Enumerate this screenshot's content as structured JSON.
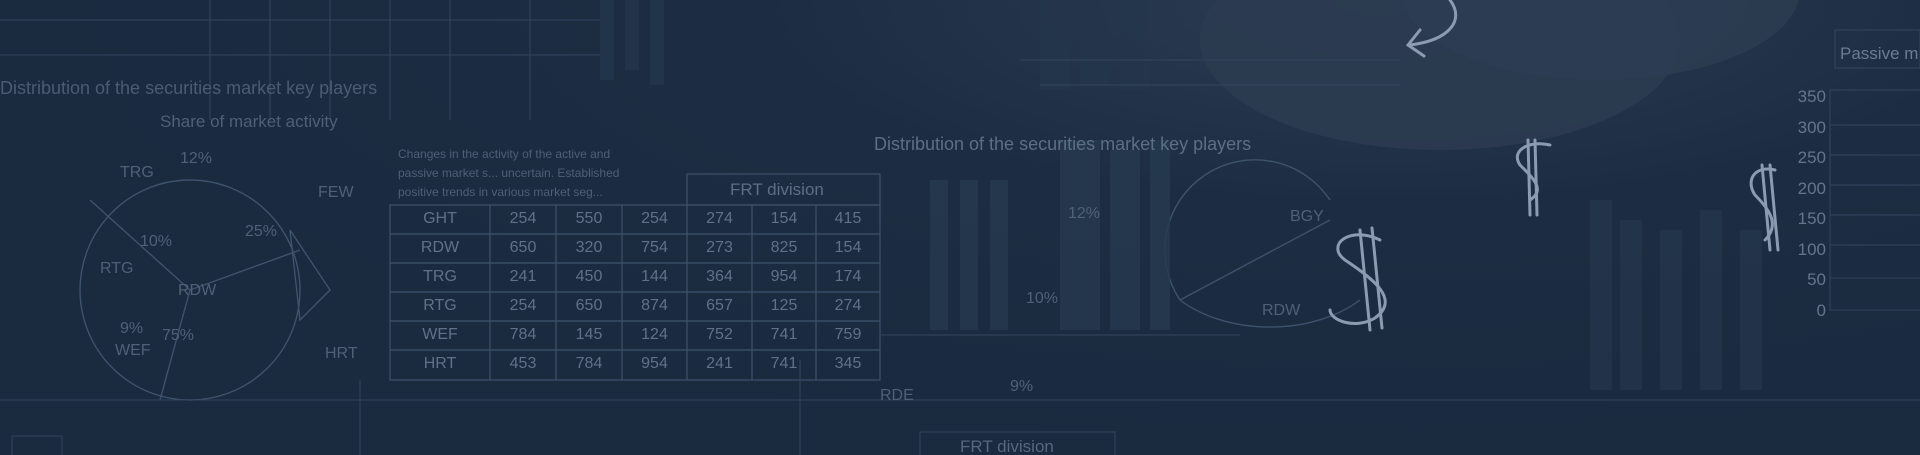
{
  "banner": {
    "background_color": "#1b2b40",
    "overlay_text": {
      "dist_title": "Distribution of the securities market key players",
      "share_title": "Share of market activity",
      "frt_title": "FRT division",
      "passive_label": "Passive m",
      "note": "Changes in the activity of the active and passive market s... uncertain. Established positive trends in various market seg...",
      "pie_labels": [
        "TRG",
        "FEW",
        "RTG",
        "RDW",
        "WEF",
        "HRT",
        "RDE",
        "BGY",
        "RDW"
      ],
      "pct_labels": [
        "12%",
        "25%",
        "10%",
        "9%",
        "75%",
        "12%",
        "10%",
        "9%"
      ],
      "left_axis": [
        "350",
        "300",
        "250",
        "200",
        "150",
        "100",
        "50",
        "0"
      ]
    },
    "table": {
      "rows": [
        {
          "label": "GHT",
          "cells": [
            "254",
            "550",
            "254",
            "274",
            "154",
            "415"
          ]
        },
        {
          "label": "RDW",
          "cells": [
            "650",
            "320",
            "754",
            "273",
            "825",
            "154"
          ]
        },
        {
          "label": "TRG",
          "cells": [
            "241",
            "450",
            "144",
            "364",
            "954",
            "174"
          ]
        },
        {
          "label": "RTG",
          "cells": [
            "254",
            "650",
            "874",
            "657",
            "125",
            "274"
          ]
        },
        {
          "label": "WEF",
          "cells": [
            "784",
            "145",
            "124",
            "752",
            "741",
            "759"
          ]
        },
        {
          "label": "HRT",
          "cells": [
            "453",
            "784",
            "954",
            "241",
            "741",
            "345"
          ]
        }
      ]
    },
    "icons": [
      "dollar-sign-icon",
      "dollar-sign-icon",
      "dollar-sign-icon",
      "arrow-curl-icon"
    ]
  }
}
